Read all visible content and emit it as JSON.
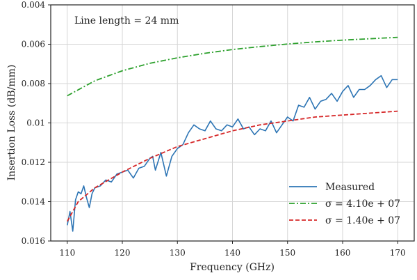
{
  "chart_data": {
    "type": "line",
    "xlabel": "Frequency (GHz)",
    "ylabel": "Insertion Loss (dB/mm)",
    "xlim": [
      107,
      173
    ],
    "ylim": [
      0.016,
      0.004
    ],
    "y_axis_inverted": true,
    "grid": true,
    "legend_position": "lower-right",
    "annotation": "Line length = 24 mm",
    "x_ticks": [
      {
        "value": 110,
        "label": "110"
      },
      {
        "value": 120,
        "label": "120"
      },
      {
        "value": 130,
        "label": "130"
      },
      {
        "value": 140,
        "label": "140"
      },
      {
        "value": 150,
        "label": "150"
      },
      {
        "value": 160,
        "label": "160"
      },
      {
        "value": 170,
        "label": "170"
      }
    ],
    "y_ticks": [
      {
        "value": 0.004,
        "label": "0.004"
      },
      {
        "value": 0.006,
        "label": "0.006"
      },
      {
        "value": 0.008,
        "label": "0.008"
      },
      {
        "value": 0.01,
        "label": "0.01"
      },
      {
        "value": 0.012,
        "label": "0.012"
      },
      {
        "value": 0.014,
        "label": "0.014"
      },
      {
        "value": 0.016,
        "label": "0.016"
      }
    ],
    "series": [
      {
        "name": "Measured",
        "color": "#2c74b4",
        "style": "solid",
        "x": [
          110,
          110.5,
          111,
          111.5,
          112,
          112.5,
          113,
          113.5,
          114,
          114.5,
          115,
          116,
          117,
          118,
          119,
          120,
          121,
          122,
          123,
          124,
          125,
          125.5,
          126,
          127,
          128,
          129,
          130,
          131,
          132,
          133,
          134,
          135,
          136,
          137,
          138,
          139,
          140,
          141,
          142,
          143,
          144,
          145,
          146,
          147,
          148,
          149,
          150,
          151,
          152,
          153,
          154,
          155,
          156,
          157,
          158,
          159,
          160,
          161,
          162,
          163,
          164,
          165,
          166,
          167,
          168,
          169,
          170
        ],
        "y": [
          0.0152,
          0.0145,
          0.0155,
          0.0139,
          0.0135,
          0.0136,
          0.0132,
          0.0138,
          0.0143,
          0.0136,
          0.0133,
          0.0132,
          0.0129,
          0.013,
          0.0126,
          0.0125,
          0.0124,
          0.0128,
          0.0123,
          0.0122,
          0.0118,
          0.0117,
          0.0124,
          0.0115,
          0.0127,
          0.0117,
          0.0113,
          0.0111,
          0.0105,
          0.0101,
          0.0103,
          0.0104,
          0.0099,
          0.0103,
          0.0104,
          0.0101,
          0.0102,
          0.0098,
          0.0103,
          0.0102,
          0.0106,
          0.0103,
          0.0104,
          0.0099,
          0.0105,
          0.0101,
          0.0097,
          0.0099,
          0.0091,
          0.0092,
          0.0087,
          0.0093,
          0.0089,
          0.0088,
          0.0085,
          0.0089,
          0.0084,
          0.0081,
          0.0087,
          0.0083,
          0.0083,
          0.0081,
          0.0078,
          0.0076,
          0.0082,
          0.0078,
          0.0078
        ]
      },
      {
        "name": "σ = 4.10e + 07",
        "color": "#2ca02c",
        "style": "dashdot",
        "x": [
          110,
          115,
          120,
          125,
          130,
          135,
          140,
          145,
          150,
          155,
          160,
          165,
          170
        ],
        "y": [
          0.00862,
          0.00786,
          0.00735,
          0.00697,
          0.00669,
          0.00646,
          0.00627,
          0.00612,
          0.00599,
          0.00588,
          0.00579,
          0.00572,
          0.00565
        ]
      },
      {
        "name": "σ = 1.40e + 07",
        "color": "#d62728",
        "style": "dashed",
        "x": [
          110,
          112,
          115,
          120,
          125,
          130,
          135,
          140,
          145,
          150,
          155,
          160,
          165,
          170
        ],
        "y": [
          0.015,
          0.014,
          0.0133,
          0.0125,
          0.0118,
          0.0112,
          0.0108,
          0.0104,
          0.0101,
          0.0099,
          0.0097,
          0.0096,
          0.0095,
          0.0094
        ]
      }
    ]
  }
}
